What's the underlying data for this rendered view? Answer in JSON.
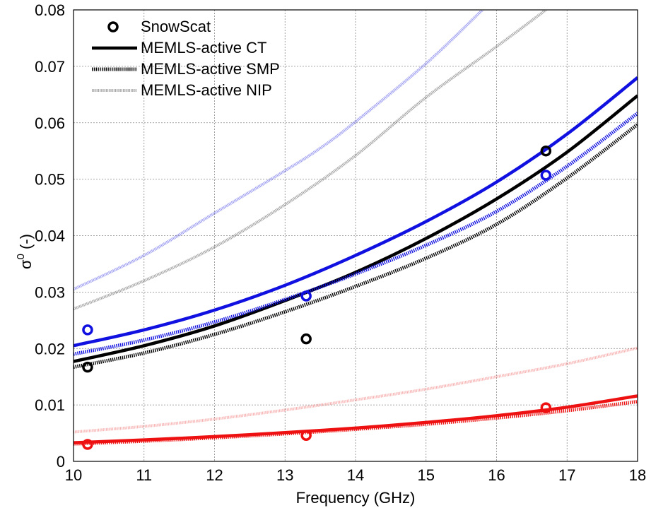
{
  "chart_data": {
    "type": "line",
    "xlabel": "Frequency (GHz)",
    "ylabel_base": "σ",
    "ylabel_sup": "0",
    "ylabel_suffix": " (-)",
    "xlim": [
      10,
      18
    ],
    "ylim": [
      0,
      0.08
    ],
    "xticks": [
      "10",
      "11",
      "12",
      "13",
      "14",
      "15",
      "16",
      "17",
      "18"
    ],
    "yticks": [
      "0",
      "0.01",
      "0.02",
      "0.03",
      "0.04",
      "0.05",
      "0.06",
      "0.07",
      "0.08"
    ],
    "grid": true,
    "legend_position": "top-left",
    "legend": [
      {
        "label": "SnowScat",
        "style": "marker"
      },
      {
        "label": "MEMLS-active CT",
        "style": "solid"
      },
      {
        "label": "MEMLS-active SMP",
        "style": "dotted"
      },
      {
        "label": "MEMLS-active NIP",
        "style": "faint"
      }
    ],
    "series": [
      {
        "style": "faint",
        "color": "#2222dd",
        "x": [
          10,
          11,
          12,
          13,
          13.5,
          14,
          15,
          15.8
        ],
        "y": [
          0.0305,
          0.0365,
          0.044,
          0.0515,
          0.0555,
          0.0602,
          0.0705,
          0.08
        ]
      },
      {
        "style": "faint",
        "color": "#333333",
        "x": [
          10,
          11,
          12,
          13,
          14,
          15,
          16,
          16.7
        ],
        "y": [
          0.027,
          0.032,
          0.038,
          0.0455,
          0.0542,
          0.0645,
          0.0735,
          0.08
        ]
      },
      {
        "style": "solid",
        "color": "#1010e0",
        "x": [
          10,
          11,
          12,
          13,
          14,
          15,
          16,
          17,
          18
        ],
        "y": [
          0.0205,
          0.0233,
          0.0268,
          0.0312,
          0.0365,
          0.0425,
          0.0495,
          0.058,
          0.068
        ]
      },
      {
        "style": "solid",
        "color": "#000000",
        "x": [
          10,
          11,
          12,
          13,
          14,
          15,
          16,
          17,
          18
        ],
        "y": [
          0.0177,
          0.0205,
          0.024,
          0.0285,
          0.0335,
          0.0395,
          0.0465,
          0.0548,
          0.0648
        ]
      },
      {
        "style": "dotted",
        "color": "#1010e0",
        "x": [
          10,
          11,
          12,
          13,
          14,
          15,
          16,
          17,
          18
        ],
        "y": [
          0.019,
          0.0215,
          0.0247,
          0.0287,
          0.0332,
          0.0383,
          0.0443,
          0.0523,
          0.0617
        ]
      },
      {
        "style": "dotted",
        "color": "#000000",
        "x": [
          10,
          11,
          12,
          13,
          14,
          15,
          16,
          17,
          18
        ],
        "y": [
          0.0167,
          0.0192,
          0.0225,
          0.0265,
          0.031,
          0.036,
          0.042,
          0.0502,
          0.0597
        ]
      },
      {
        "style": "faint",
        "color": "#ee5555",
        "x": [
          10,
          11,
          12,
          13,
          14,
          15,
          16,
          17,
          18
        ],
        "y": [
          0.0052,
          0.0062,
          0.0075,
          0.0091,
          0.0109,
          0.0128,
          0.015,
          0.0173,
          0.0201
        ]
      },
      {
        "style": "solid",
        "color": "#ee1111",
        "x": [
          10,
          11,
          12,
          13,
          14,
          15,
          16,
          17,
          18
        ],
        "y": [
          0.0033,
          0.0038,
          0.0044,
          0.0051,
          0.0059,
          0.0069,
          0.0081,
          0.0096,
          0.0116
        ]
      },
      {
        "style": "dotted",
        "color": "#ee1111",
        "x": [
          10,
          11,
          12,
          13,
          14,
          15,
          16,
          17,
          18
        ],
        "y": [
          0.0031,
          0.0036,
          0.0042,
          0.0049,
          0.0057,
          0.0066,
          0.0077,
          0.009,
          0.0106
        ]
      }
    ],
    "points": [
      {
        "color": "#000000",
        "x": [
          10.2,
          13.3,
          16.7
        ],
        "y": [
          0.0167,
          0.0217,
          0.055
        ]
      },
      {
        "color": "#1010e0",
        "x": [
          10.2,
          13.3,
          16.7
        ],
        "y": [
          0.0233,
          0.0293,
          0.0507
        ]
      },
      {
        "color": "#ee1111",
        "x": [
          10.2,
          13.3,
          16.7
        ],
        "y": [
          0.003,
          0.0046,
          0.0095
        ]
      }
    ]
  }
}
